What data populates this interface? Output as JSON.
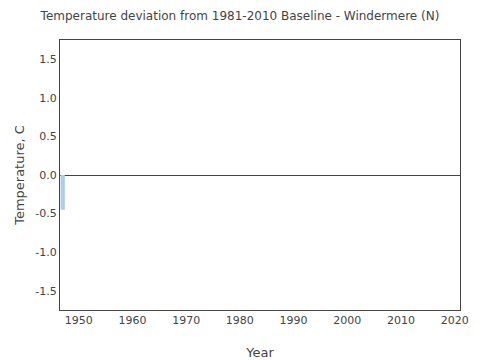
{
  "chart_data": {
    "type": "bar",
    "title": "Temperature deviation from 1981-2010 Baseline - Windermere (N)",
    "xlabel": "Year",
    "ylabel": "Temperature, C",
    "x": [
      1947
    ],
    "values": [
      -0.45
    ],
    "color": "#aecde8",
    "xlim": [
      1946.5,
      2021
    ],
    "ylim": [
      -1.75,
      1.75
    ],
    "xticks": [
      1950,
      1960,
      1970,
      1980,
      1990,
      2000,
      2010,
      2020
    ],
    "yticks": [
      -1.5,
      {
        "value": -1.0,
        "label": "-1.0"
      },
      -0.5,
      {
        "value": 0.0,
        "label": "0.0"
      },
      0.5,
      {
        "value": 1.0,
        "label": "1.0"
      },
      1.5
    ],
    "grid": false
  }
}
